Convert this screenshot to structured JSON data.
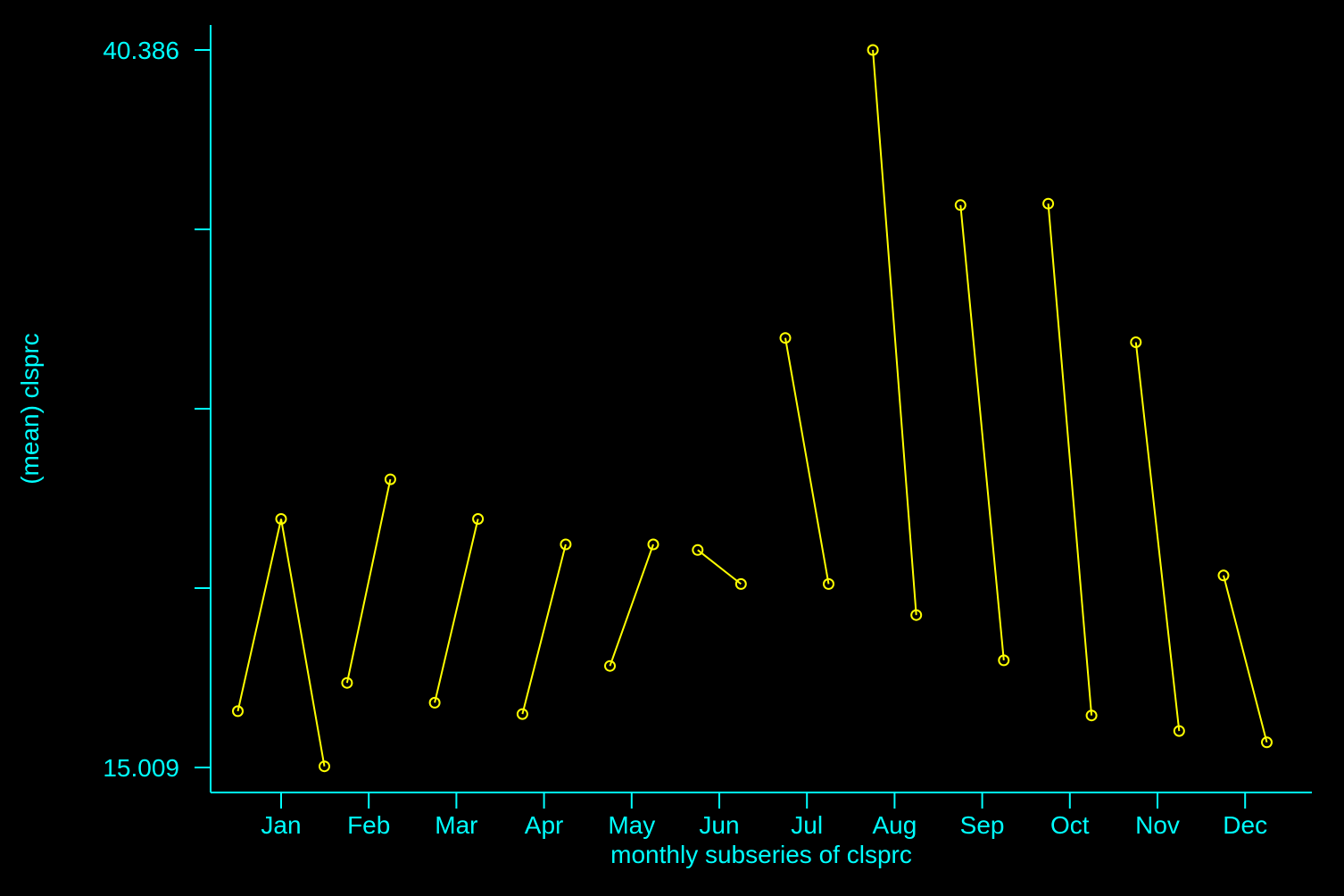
{
  "chart_data": {
    "type": "line",
    "xlabel": "monthly subseries of clsprc",
    "ylabel": "(mean) clsprc",
    "y_tick_labels": [
      "40.386",
      "15.009"
    ],
    "ylim": [
      15.009,
      40.386
    ],
    "categories": [
      "Jan",
      "Feb",
      "Mar",
      "Apr",
      "May",
      "Jun",
      "Jul",
      "Aug",
      "Sep",
      "Oct",
      "Nov",
      "Dec"
    ],
    "subseries": [
      {
        "month": "Jan",
        "values": [
          17.0,
          23.8,
          15.05
        ]
      },
      {
        "month": "Feb",
        "values": [
          18.0,
          25.2
        ]
      },
      {
        "month": "Mar",
        "values": [
          17.3,
          23.8
        ]
      },
      {
        "month": "Apr",
        "values": [
          16.9,
          22.9
        ]
      },
      {
        "month": "May",
        "values": [
          18.6,
          22.9
        ]
      },
      {
        "month": "Jun",
        "values": [
          22.7,
          21.5
        ]
      },
      {
        "month": "Jul",
        "values": [
          30.2,
          21.5
        ]
      },
      {
        "month": "Aug",
        "values": [
          40.386,
          20.4
        ]
      },
      {
        "month": "Sep",
        "values": [
          34.9,
          18.8
        ]
      },
      {
        "month": "Oct",
        "values": [
          34.95,
          16.85
        ]
      },
      {
        "month": "Nov",
        "values": [
          30.05,
          16.3
        ]
      },
      {
        "month": "Dec",
        "values": [
          21.8,
          15.9
        ]
      }
    ],
    "colors": {
      "axis": "#00ffff",
      "series": "#ffff00",
      "background": "#000000"
    }
  }
}
